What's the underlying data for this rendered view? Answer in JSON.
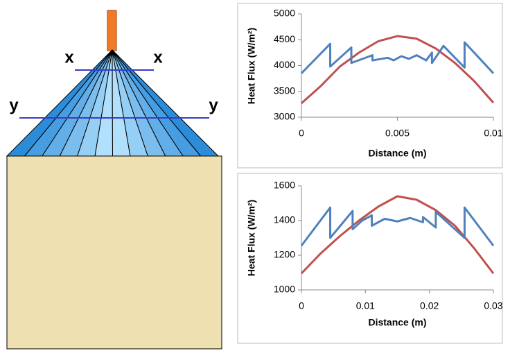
{
  "diagram": {
    "labels": [
      "x",
      "x",
      "y",
      "y"
    ]
  },
  "chart_data": [
    {
      "type": "line",
      "y_label": "Heat Flux (W/m²)",
      "x_label": "Distance (m)",
      "xlim": [
        0,
        0.01
      ],
      "xticks": [
        0,
        0.005,
        0.01
      ],
      "ylim": [
        3000,
        5000
      ],
      "yticks": [
        3000,
        3500,
        4000,
        4500,
        5000
      ],
      "grid": false,
      "series": [
        {
          "color": "#c0504d",
          "x": [
            0,
            0.001,
            0.002,
            0.003,
            0.004,
            0.005,
            0.006,
            0.007,
            0.008,
            0.009,
            0.01
          ],
          "values": [
            3270,
            3600,
            3980,
            4250,
            4470,
            4570,
            4520,
            4330,
            4050,
            3700,
            3280
          ]
        },
        {
          "color": "#4f81bd",
          "x": [
            0,
            0.0015,
            0.0015,
            0.0026,
            0.0026,
            0.0037,
            0.0037,
            0.0045,
            0.0048,
            0.0052,
            0.0056,
            0.006,
            0.0065,
            0.0068,
            0.0068,
            0.0074,
            0.0074,
            0.0085,
            0.0085,
            0.01
          ],
          "values": [
            3850,
            4420,
            3980,
            4350,
            4050,
            4200,
            4100,
            4150,
            4100,
            4180,
            4130,
            4200,
            4100,
            4250,
            4050,
            4380,
            4380,
            3960,
            4450,
            3850
          ]
        }
      ]
    },
    {
      "type": "line",
      "y_label": "Heat Flux (W/m²)",
      "x_label": "Distance (m)",
      "xlim": [
        0,
        0.03
      ],
      "xticks": [
        0,
        0.01,
        0.02,
        0.03
      ],
      "ylim": [
        1000,
        1600
      ],
      "yticks": [
        1000,
        1200,
        1400,
        1600
      ],
      "grid": false,
      "series": [
        {
          "color": "#c0504d",
          "x": [
            0,
            0.003,
            0.006,
            0.009,
            0.012,
            0.015,
            0.018,
            0.021,
            0.024,
            0.027,
            0.03
          ],
          "values": [
            1095,
            1210,
            1310,
            1400,
            1480,
            1540,
            1520,
            1460,
            1370,
            1240,
            1095
          ]
        },
        {
          "color": "#4f81bd",
          "x": [
            0,
            0.0045,
            0.0045,
            0.008,
            0.008,
            0.0095,
            0.011,
            0.011,
            0.013,
            0.015,
            0.017,
            0.019,
            0.019,
            0.021,
            0.021,
            0.0255,
            0.0255,
            0.03
          ],
          "values": [
            1255,
            1475,
            1300,
            1455,
            1350,
            1400,
            1430,
            1370,
            1410,
            1395,
            1415,
            1390,
            1420,
            1360,
            1450,
            1300,
            1475,
            1255
          ]
        }
      ]
    }
  ]
}
